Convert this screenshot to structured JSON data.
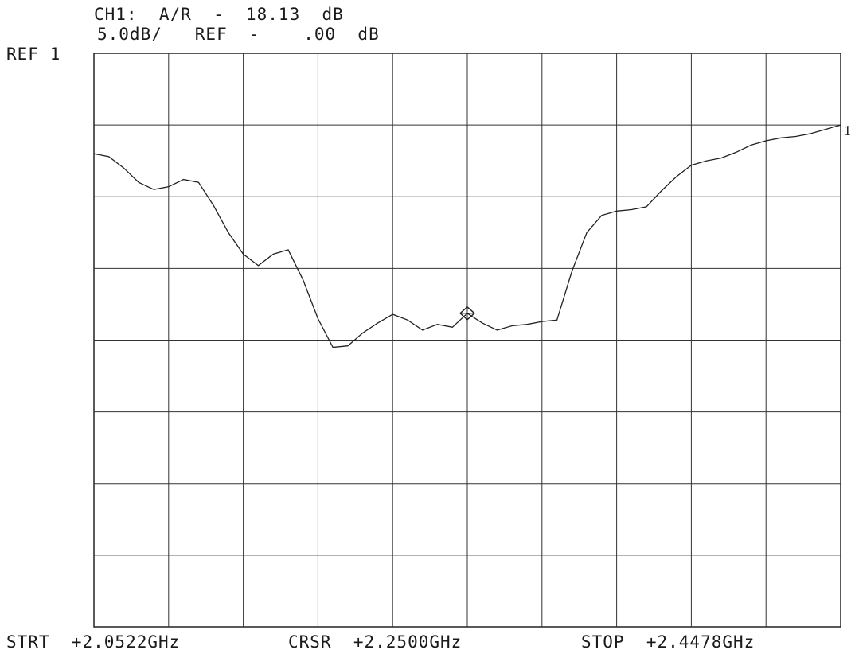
{
  "header": {
    "line1": "CH1:  A/R  -  18.13  dB",
    "line2": "5.0dB/   REF  -    .00  dB"
  },
  "ref_label": "REF 1",
  "trace_marker_label": "1",
  "footer": {
    "start": "STRT  +2.0522GHz",
    "cursor": "CRSR  +2.2500GHz",
    "stop": "STOP  +2.4478GHz"
  },
  "chart_data": {
    "type": "line",
    "x_unit": "GHz",
    "y_unit": "dB",
    "xlim": [
      2.0522,
      2.4478
    ],
    "ylim": [
      -40,
      0
    ],
    "grid": true,
    "grid_divisions": {
      "x": 10,
      "y": 8
    },
    "reference_level_db": 0.0,
    "scale_db_per_div": 5.0,
    "cursor": {
      "x": 2.25,
      "y": -18.13,
      "marker": "diamond"
    },
    "series": [
      {
        "x": [
          2.0522,
          2.0601,
          2.068,
          2.0759,
          2.0839,
          2.0918,
          2.0997,
          2.1076,
          2.1155,
          2.1234,
          2.1313,
          2.1393,
          2.1472,
          2.1551,
          2.163,
          2.1709,
          2.1788,
          2.1867,
          2.1946,
          2.2026,
          2.2105,
          2.2184,
          2.2263,
          2.2342,
          2.2421,
          2.25,
          2.2579,
          2.2658,
          2.2737,
          2.2817,
          2.2896,
          2.2975,
          2.3054,
          2.3133,
          2.3212,
          2.3291,
          2.337,
          2.3449,
          2.3528,
          2.3608,
          2.3687,
          2.3766,
          2.3845,
          2.3924,
          2.4003,
          2.4082,
          2.4161,
          2.424,
          2.432,
          2.4399,
          2.4478
        ],
        "y": [
          -7.0,
          -7.2,
          -8.0,
          -9.0,
          -9.5,
          -9.3,
          -8.8,
          -9.0,
          -10.6,
          -12.5,
          -14.0,
          -14.8,
          -14.0,
          -13.7,
          -15.8,
          -18.5,
          -20.5,
          -20.4,
          -19.5,
          -18.8,
          -18.2,
          -18.6,
          -19.3,
          -18.9,
          -19.1,
          -18.13,
          -18.8,
          -19.3,
          -19.0,
          -18.9,
          -18.7,
          -18.6,
          -15.2,
          -12.5,
          -11.3,
          -11.0,
          -10.9,
          -10.7,
          -9.6,
          -8.6,
          -7.8,
          -7.5,
          -7.3,
          -6.9,
          -6.4,
          -6.1,
          -5.9,
          -5.8,
          -5.6,
          -5.3,
          -5.0
        ]
      }
    ]
  }
}
